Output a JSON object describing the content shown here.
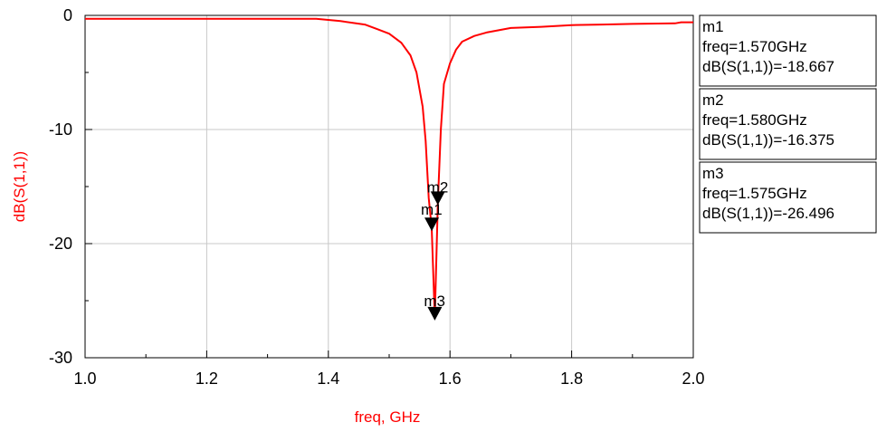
{
  "chart_data": {
    "type": "line",
    "xlabel": "freq, GHz",
    "ylabel": "dB(S(1,1))",
    "xlim": [
      1.0,
      2.0
    ],
    "ylim": [
      -30,
      0
    ],
    "x_ticks": [
      "1.0",
      "1.2",
      "1.4",
      "1.6",
      "1.8",
      "2.0"
    ],
    "y_ticks": [
      "0",
      "-10",
      "-20",
      "-30"
    ],
    "grid": true,
    "series": [
      {
        "color": "#ff0000",
        "x": [
          1.0,
          1.1,
          1.2,
          1.3,
          1.38,
          1.42,
          1.46,
          1.48,
          1.5,
          1.52,
          1.535,
          1.545,
          1.555,
          1.56,
          1.565,
          1.57,
          1.575,
          1.58,
          1.585,
          1.59,
          1.6,
          1.61,
          1.62,
          1.64,
          1.66,
          1.68,
          1.7,
          1.75,
          1.8,
          1.85,
          1.9,
          1.97,
          1.98,
          2.0
        ],
        "y": [
          -0.3,
          -0.3,
          -0.3,
          -0.3,
          -0.3,
          -0.5,
          -0.8,
          -1.2,
          -1.6,
          -2.4,
          -3.5,
          -5.0,
          -8.0,
          -11.0,
          -16.0,
          -18.667,
          -26.496,
          -16.375,
          -10.0,
          -6.0,
          -4.2,
          -3.0,
          -2.3,
          -1.8,
          -1.5,
          -1.3,
          -1.1,
          -1.0,
          -0.85,
          -0.8,
          -0.75,
          -0.7,
          -0.6,
          -0.6
        ]
      }
    ],
    "markers": [
      {
        "name": "m1",
        "freq": 1.57,
        "value": -18.667,
        "lines": [
          "m1",
          "freq=1.570GHz",
          "dB(S(1,1))=-18.667"
        ]
      },
      {
        "name": "m2",
        "freq": 1.58,
        "value": -16.375,
        "lines": [
          "m2",
          "freq=1.580GHz",
          "dB(S(1,1))=-16.375"
        ]
      },
      {
        "name": "m3",
        "freq": 1.575,
        "value": -26.496,
        "lines": [
          "m3",
          "freq=1.575GHz",
          "dB(S(1,1))=-26.496"
        ]
      }
    ]
  }
}
